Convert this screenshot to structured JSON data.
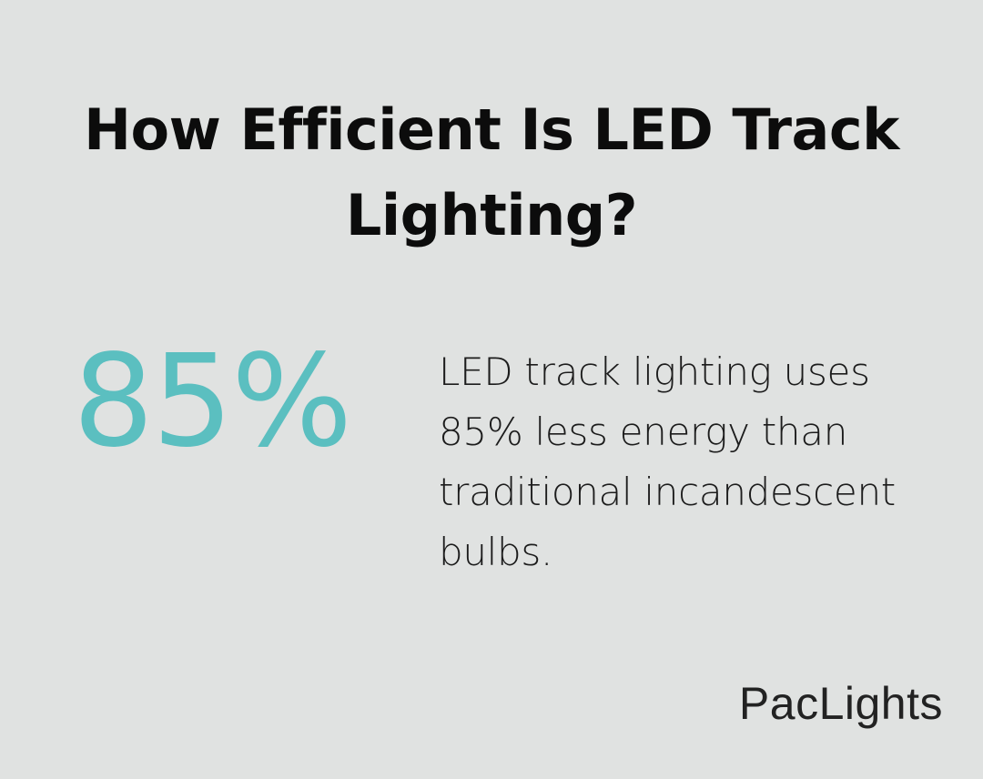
{
  "heading": {
    "title": "How Efficient Is LED Track Lighting?"
  },
  "stat": {
    "value": "85%",
    "description": "LED track lighting uses 85% less energy than traditional incandescent bulbs."
  },
  "brand": {
    "name": "PacLights"
  },
  "colors": {
    "background": "#e0e2e1",
    "accent": "#5bbfc0",
    "text": "#0c0c0c"
  }
}
